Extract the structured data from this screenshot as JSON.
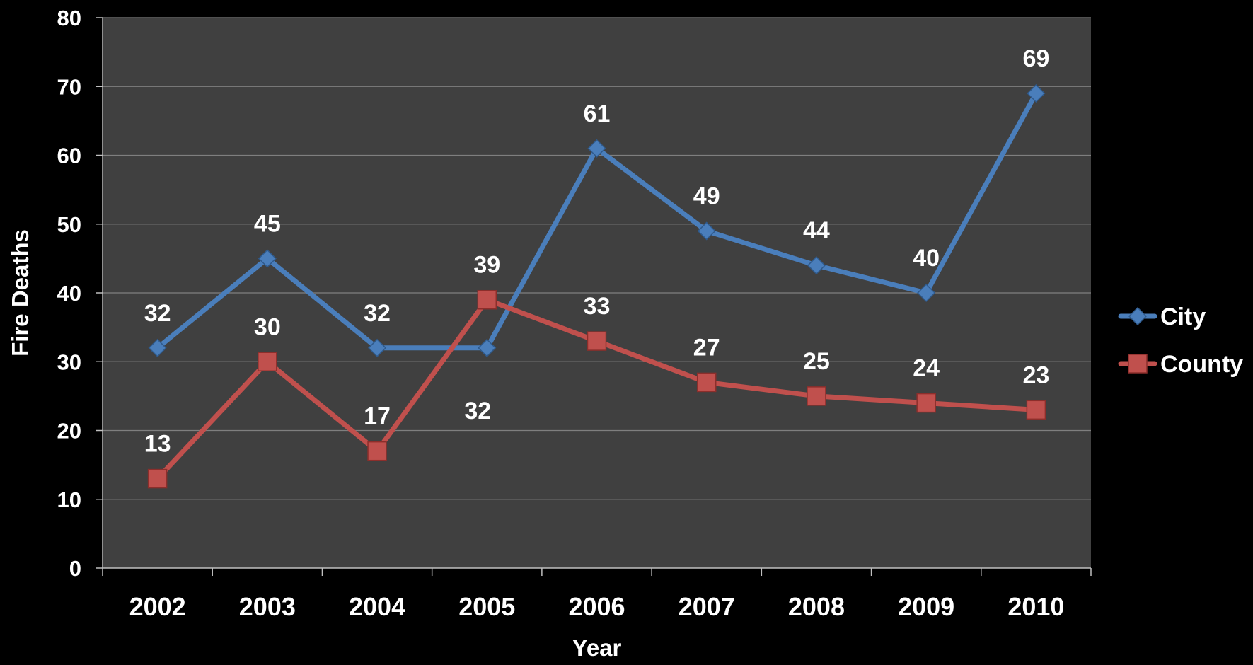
{
  "chart_data": {
    "type": "line",
    "title": "",
    "xlabel": "Year",
    "ylabel": "Fire Deaths",
    "categories": [
      "2002",
      "2003",
      "2004",
      "2005",
      "2006",
      "2007",
      "2008",
      "2009",
      "2010"
    ],
    "ylim": [
      0,
      80
    ],
    "yticks": [
      0,
      10,
      20,
      30,
      40,
      50,
      60,
      70,
      80
    ],
    "grid": true,
    "legend_position": "right",
    "series": [
      {
        "name": "City",
        "values": [
          32,
          45,
          32,
          32,
          61,
          49,
          44,
          40,
          69
        ],
        "color": "#4a7ebb",
        "marker": "diamond"
      },
      {
        "name": "County",
        "values": [
          13,
          30,
          17,
          39,
          33,
          27,
          25,
          24,
          23
        ],
        "color": "#c0504d",
        "marker": "square"
      }
    ],
    "colors": {
      "background": "#000000",
      "plot_area": "#404040",
      "gridline": "#7f7f7f",
      "text": "#ffffff"
    }
  }
}
